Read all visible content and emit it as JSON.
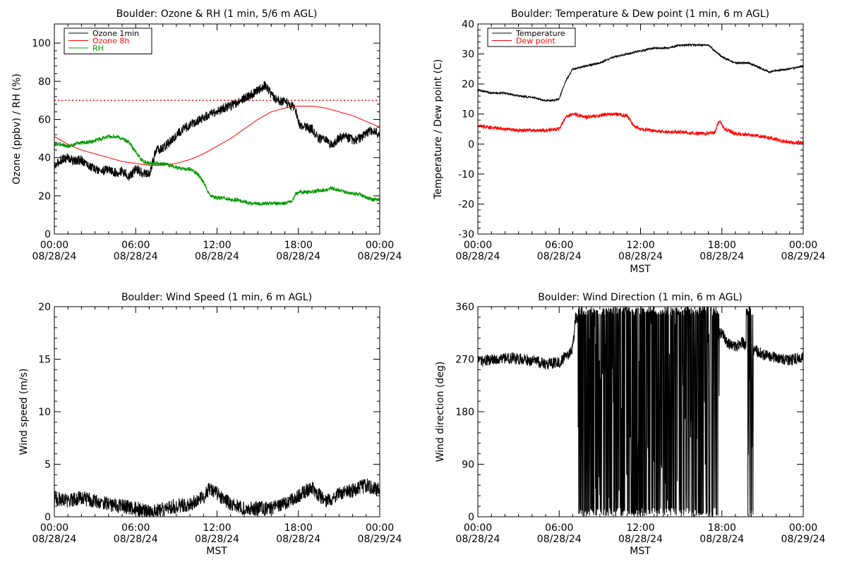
{
  "chart_data": [
    {
      "id": "ozone",
      "type": "line",
      "title": "Boulder: Ozone & RH (1 min, 5/6 m AGL)",
      "ylabel": "Ozone (ppbv) / RH (%)",
      "xlabel": "",
      "xlim": [
        0,
        24
      ],
      "ylim": [
        0,
        110
      ],
      "yticks": [
        0,
        20,
        40,
        60,
        80,
        100
      ],
      "xticks": [
        {
          "time": "00:00",
          "date": "08/28/24"
        },
        {
          "time": "06:00",
          "date": "08/28/24"
        },
        {
          "time": "12:00",
          "date": "08/28/24"
        },
        {
          "time": "18:00",
          "date": "08/28/24"
        },
        {
          "time": "00:00",
          "date": "08/29/24"
        }
      ],
      "legend": [
        {
          "label": "Ozone 1min",
          "color": "#000000"
        },
        {
          "label": "Ozone 8h",
          "color": "#ff0000"
        },
        {
          "label": "RH",
          "color": "#009900"
        }
      ],
      "legend_position": "top-left",
      "reference_line": {
        "y": 70,
        "color": "#ff0000",
        "style": "dotted"
      },
      "series": [
        {
          "name": "Ozone 1min",
          "color": "#000000",
          "x": [
            0,
            0.5,
            1,
            1.5,
            2,
            2.5,
            3,
            3.5,
            4,
            4.5,
            5,
            5.5,
            6,
            6.5,
            7,
            7.5,
            8,
            8.5,
            9,
            9.5,
            10,
            10.5,
            11,
            11.5,
            12,
            12.5,
            13,
            13.5,
            14,
            14.5,
            15,
            15.5,
            16,
            16.5,
            17,
            17.5,
            17.8,
            18,
            18.5,
            19,
            19.5,
            20,
            20.5,
            21,
            21.5,
            22,
            22.5,
            23,
            23.5,
            24
          ],
          "y": [
            35,
            39,
            40,
            38,
            39,
            36,
            34,
            33,
            34,
            32,
            33,
            30,
            34,
            32,
            31,
            44,
            45,
            48,
            52,
            55,
            57,
            59,
            61,
            63,
            64,
            66,
            67,
            69,
            71,
            73,
            75,
            78,
            73,
            70,
            69,
            67,
            65,
            58,
            56,
            55,
            50,
            49,
            47,
            50,
            51,
            49,
            50,
            53,
            54,
            52
          ],
          "noise": 2.5
        },
        {
          "name": "Ozone 8h",
          "color": "#ff0000",
          "x": [
            0,
            1,
            2,
            3,
            4,
            5,
            6,
            7,
            8,
            9,
            10,
            11,
            12,
            13,
            14,
            15,
            16,
            17,
            18,
            19,
            20,
            21,
            22,
            23,
            24
          ],
          "y": [
            51,
            47,
            44,
            42,
            40,
            38,
            37,
            36,
            36,
            37,
            39,
            42,
            46,
            50,
            55,
            60,
            64,
            66,
            67,
            67,
            66,
            64,
            62,
            59,
            56
          ],
          "noise": 0
        },
        {
          "name": "RH",
          "color": "#009900",
          "x": [
            0,
            0.5,
            1,
            1.5,
            2,
            2.5,
            3,
            3.5,
            4,
            4.5,
            5,
            5.5,
            6,
            6.5,
            7,
            7.5,
            8,
            8.5,
            9,
            9.5,
            10,
            10.5,
            11,
            11.5,
            12,
            12.5,
            13,
            13.5,
            14,
            14.5,
            15,
            15.5,
            16,
            16.5,
            17,
            17.5,
            17.8,
            18,
            18.5,
            19,
            19.5,
            20,
            20.5,
            21,
            21.5,
            22,
            22.5,
            23,
            23.5,
            24
          ],
          "y": [
            47,
            47,
            46,
            47,
            48,
            48,
            49,
            50,
            51,
            51,
            50,
            48,
            43,
            38,
            37,
            37,
            37,
            36,
            35,
            34,
            34,
            32,
            27,
            20,
            19,
            19,
            18,
            18,
            17,
            16,
            16,
            16,
            16,
            16,
            16,
            17,
            21,
            22,
            22,
            22,
            23,
            23,
            24,
            23,
            22,
            21,
            21,
            19,
            18,
            18
          ],
          "noise": 1.0
        }
      ]
    },
    {
      "id": "temperature",
      "type": "line",
      "title": "Boulder: Temperature & Dew point (1 min, 6 m AGL)",
      "ylabel": "Temperature / Dew point (C)",
      "xlabel": "MST",
      "xlim": [
        0,
        24
      ],
      "ylim": [
        -30,
        40
      ],
      "yticks": [
        -30,
        -20,
        -10,
        0,
        10,
        20,
        30,
        40
      ],
      "xticks": [
        {
          "time": "00:00",
          "date": "08/28/24"
        },
        {
          "time": "06:00",
          "date": "08/28/24"
        },
        {
          "time": "12:00",
          "date": "08/28/24"
        },
        {
          "time": "18:00",
          "date": "08/28/24"
        },
        {
          "time": "00:00",
          "date": "08/29/24"
        }
      ],
      "legend": [
        {
          "label": "Temperature",
          "color": "#000000"
        },
        {
          "label": "Dew point",
          "color": "#ff0000"
        }
      ],
      "legend_position": "top-left",
      "series": [
        {
          "name": "Temperature",
          "color": "#000000",
          "x": [
            0,
            1,
            2,
            3,
            4,
            5,
            5.5,
            6,
            6.3,
            6.6,
            7,
            8,
            9,
            10,
            11,
            12,
            13,
            14,
            15,
            16,
            17,
            17.5,
            18,
            18.5,
            19,
            20,
            21,
            21.5,
            22,
            23,
            24
          ],
          "y": [
            18,
            17,
            17,
            16,
            15.5,
            14.5,
            14.5,
            15,
            19,
            22,
            25,
            26,
            27,
            29,
            30,
            31,
            32,
            32,
            33,
            33,
            33,
            31,
            29,
            28,
            27,
            27,
            25,
            24,
            24.5,
            25,
            26
          ],
          "noise": 0.3
        },
        {
          "name": "Dew point",
          "color": "#ff0000",
          "x": [
            0,
            1,
            2,
            3,
            4,
            5,
            6,
            6.5,
            7,
            8,
            9,
            10,
            11,
            11.5,
            12,
            13,
            14,
            15,
            16,
            17,
            17.5,
            17.8,
            18.2,
            19,
            20,
            21,
            22,
            23,
            24
          ],
          "y": [
            6,
            5.5,
            5,
            4.5,
            4.5,
            4.5,
            5,
            9,
            10,
            9,
            9.5,
            10,
            9.5,
            6,
            5,
            4.5,
            4,
            4,
            3.5,
            3.5,
            4,
            8,
            5,
            3.5,
            3,
            2.5,
            1.5,
            0.5,
            0.5
          ],
          "noise": 0.6
        }
      ]
    },
    {
      "id": "windspeed",
      "type": "line",
      "title": "Boulder: Wind Speed (1 min, 6 m AGL)",
      "ylabel": "Wind speed (m/s)",
      "xlabel": "MST",
      "xlim": [
        0,
        24
      ],
      "ylim": [
        0,
        20
      ],
      "yticks": [
        0,
        5,
        10,
        15,
        20
      ],
      "xticks": [
        {
          "time": "00:00",
          "date": "08/28/24"
        },
        {
          "time": "06:00",
          "date": "08/28/24"
        },
        {
          "time": "12:00",
          "date": "08/28/24"
        },
        {
          "time": "18:00",
          "date": "08/28/24"
        },
        {
          "time": "00:00",
          "date": "08/29/24"
        }
      ],
      "legend": [],
      "series": [
        {
          "name": "",
          "color": "#000000",
          "x": [
            0,
            1,
            2,
            3,
            4,
            5,
            6,
            7,
            8,
            9,
            10,
            11,
            11.5,
            12,
            13,
            14,
            15,
            16,
            17,
            18,
            19,
            20,
            21,
            22,
            23,
            24
          ],
          "y": [
            1.8,
            1.5,
            1.8,
            1.5,
            1.2,
            1.0,
            0.8,
            0.5,
            0.7,
            1.0,
            1.2,
            1.8,
            2.8,
            2.2,
            1.2,
            0.8,
            0.8,
            0.8,
            1.2,
            2.0,
            2.8,
            1.5,
            2.2,
            2.5,
            3.0,
            2.5
          ],
          "noise": 0.7
        }
      ]
    },
    {
      "id": "winddir",
      "type": "line",
      "title": "Boulder: Wind Direction (1 min, 6 m AGL)",
      "ylabel": "Wind direction (deg)",
      "xlabel": "MST",
      "xlim": [
        0,
        24
      ],
      "ylim": [
        0,
        360
      ],
      "yticks": [
        0,
        90,
        180,
        270,
        360
      ],
      "xticks": [
        {
          "time": "00:00",
          "date": "08/28/24"
        },
        {
          "time": "06:00",
          "date": "08/28/24"
        },
        {
          "time": "12:00",
          "date": "08/28/24"
        },
        {
          "time": "18:00",
          "date": "08/28/24"
        },
        {
          "time": "00:00",
          "date": "08/29/24"
        }
      ],
      "legend": [],
      "series": [
        {
          "name": "",
          "color": "#000000",
          "x": [
            0,
            1,
            2,
            3,
            4,
            5,
            6,
            6.5,
            7,
            7.2,
            18,
            18.5,
            19,
            19.5,
            20,
            20.5,
            21,
            22,
            23,
            24
          ],
          "y": [
            265,
            270,
            272,
            270,
            268,
            262,
            265,
            275,
            290,
            340,
            315,
            295,
            290,
            300,
            290,
            285,
            278,
            272,
            268,
            275
          ],
          "noise": 10,
          "wrap_region": [
            7.4,
            17.8
          ],
          "wrap_region_2": [
            19.8,
            20.3
          ]
        }
      ]
    }
  ]
}
